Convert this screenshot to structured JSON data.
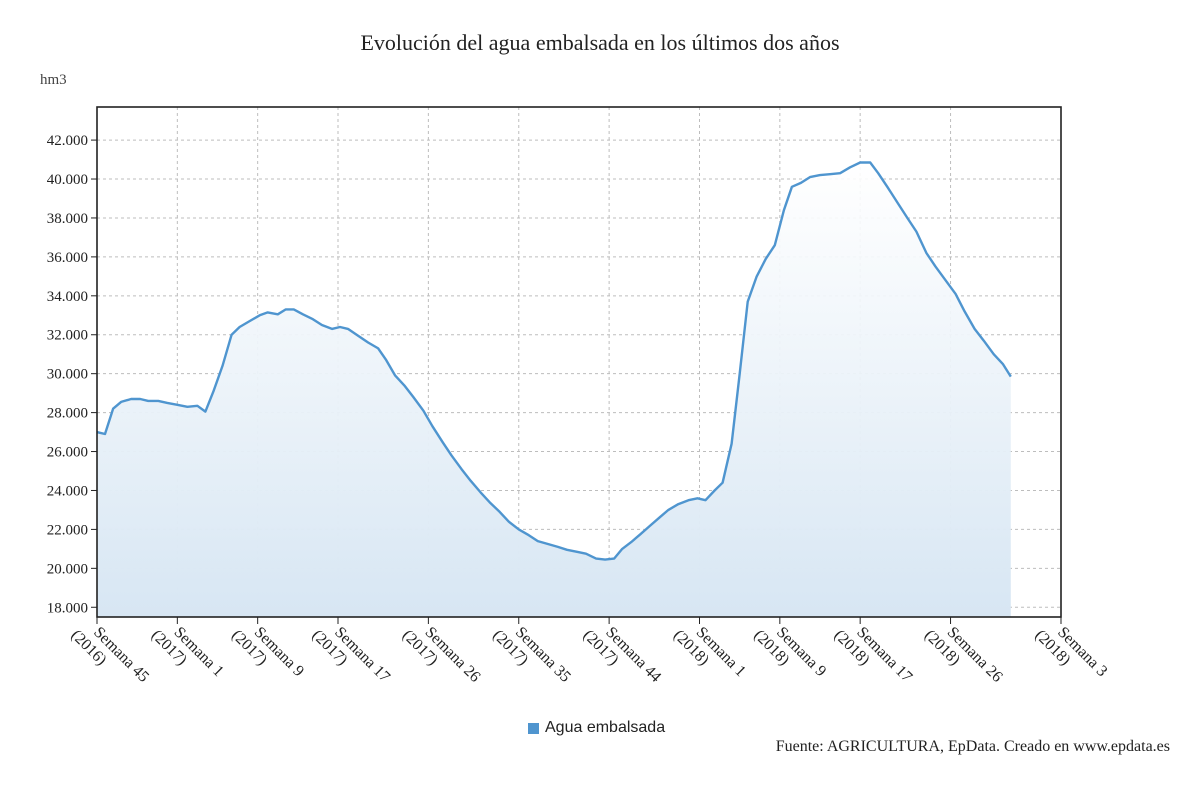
{
  "chart_data": {
    "type": "area",
    "title": "Evolución del agua embalsada en los últimos dos años",
    "unit_label": "hm3",
    "ylim": [
      17500,
      43700
    ],
    "y_ticks": [
      18000,
      20000,
      22000,
      24000,
      26000,
      28000,
      30000,
      32000,
      34000,
      36000,
      38000,
      40000,
      42000
    ],
    "y_tick_labels": [
      "18.000",
      "20.000",
      "22.000",
      "24.000",
      "26.000",
      "28.000",
      "30.000",
      "32.000",
      "34.000",
      "36.000",
      "38.000",
      "40.000",
      "42.000"
    ],
    "x_range": [
      0,
      96
    ],
    "x_ticks": [
      {
        "x": 0,
        "line1": "Semana 45",
        "line2": "(2016)"
      },
      {
        "x": 8,
        "line1": "Semana 1",
        "line2": "(2017)"
      },
      {
        "x": 16,
        "line1": "Semana 9",
        "line2": "(2017)"
      },
      {
        "x": 24,
        "line1": "Semana 17",
        "line2": "(2017)"
      },
      {
        "x": 33,
        "line1": "Semana 26",
        "line2": "(2017)"
      },
      {
        "x": 42,
        "line1": "Semana 35",
        "line2": "(2017)"
      },
      {
        "x": 51,
        "line1": "Semana 44",
        "line2": "(2017)"
      },
      {
        "x": 60,
        "line1": "Semana 1",
        "line2": "(2018)"
      },
      {
        "x": 68,
        "line1": "Semana 9",
        "line2": "(2018)"
      },
      {
        "x": 76,
        "line1": "Semana 17",
        "line2": "(2018)"
      },
      {
        "x": 85,
        "line1": "Semana 26",
        "line2": "(2018)"
      },
      {
        "x": 96,
        "line1": "Semana 3",
        "line2": "(2018)"
      }
    ],
    "grid": true,
    "legend_position": "bottom",
    "series": [
      {
        "name": "Agua embalsada",
        "color": "#4f95cf",
        "points": [
          [
            0,
            27000
          ],
          [
            0.8,
            26900
          ],
          [
            1.6,
            28200
          ],
          [
            2.4,
            28550
          ],
          [
            3.4,
            28700
          ],
          [
            4.3,
            28700
          ],
          [
            5.1,
            28600
          ],
          [
            6.1,
            28600
          ],
          [
            7.0,
            28500
          ],
          [
            8.0,
            28400
          ],
          [
            9.0,
            28300
          ],
          [
            10.0,
            28350
          ],
          [
            10.8,
            28050
          ],
          [
            11.6,
            29100
          ],
          [
            12.5,
            30400
          ],
          [
            13.4,
            32000
          ],
          [
            14.2,
            32400
          ],
          [
            15.2,
            32700
          ],
          [
            16.2,
            33000
          ],
          [
            17.0,
            33150
          ],
          [
            18.0,
            33050
          ],
          [
            18.8,
            33300
          ],
          [
            19.6,
            33300
          ],
          [
            20.5,
            33050
          ],
          [
            21.5,
            32800
          ],
          [
            22.4,
            32500
          ],
          [
            23.4,
            32300
          ],
          [
            24.2,
            32400
          ],
          [
            25.0,
            32300
          ],
          [
            26.0,
            31950
          ],
          [
            27.0,
            31600
          ],
          [
            28.0,
            31300
          ],
          [
            28.8,
            30700
          ],
          [
            29.7,
            29900
          ],
          [
            30.6,
            29400
          ],
          [
            31.5,
            28800
          ],
          [
            32.5,
            28100
          ],
          [
            33.4,
            27300
          ],
          [
            34.4,
            26500
          ],
          [
            35.3,
            25800
          ],
          [
            36.3,
            25100
          ],
          [
            37.2,
            24500
          ],
          [
            38.2,
            23900
          ],
          [
            39.1,
            23400
          ],
          [
            40.1,
            22900
          ],
          [
            41.0,
            22400
          ],
          [
            42.0,
            22000
          ],
          [
            43.0,
            21700
          ],
          [
            43.9,
            21400
          ],
          [
            44.9,
            21250
          ],
          [
            45.9,
            21100
          ],
          [
            46.8,
            20950
          ],
          [
            47.8,
            20850
          ],
          [
            48.7,
            20750
          ],
          [
            49.7,
            20500
          ],
          [
            50.6,
            20450
          ],
          [
            51.5,
            20500
          ],
          [
            52.3,
            21000
          ],
          [
            53.2,
            21350
          ],
          [
            54.1,
            21750
          ],
          [
            55.1,
            22200
          ],
          [
            56.0,
            22600
          ],
          [
            56.9,
            23000
          ],
          [
            57.9,
            23300
          ],
          [
            58.9,
            23500
          ],
          [
            59.8,
            23600
          ],
          [
            60.6,
            23500
          ],
          [
            61.5,
            24000
          ],
          [
            62.3,
            24400
          ],
          [
            63.2,
            26400
          ],
          [
            64.0,
            30000
          ],
          [
            64.8,
            33700
          ],
          [
            65.7,
            35000
          ],
          [
            66.6,
            35900
          ],
          [
            67.5,
            36600
          ],
          [
            68.4,
            38400
          ],
          [
            69.2,
            39600
          ],
          [
            70.1,
            39800
          ],
          [
            71.0,
            40100
          ],
          [
            72.0,
            40200
          ],
          [
            73.0,
            40250
          ],
          [
            74.0,
            40300
          ],
          [
            75.0,
            40600
          ],
          [
            76.0,
            40850
          ],
          [
            77.0,
            40850
          ],
          [
            77.8,
            40300
          ],
          [
            78.7,
            39600
          ],
          [
            79.7,
            38800
          ],
          [
            80.7,
            38000
          ],
          [
            81.6,
            37300
          ],
          [
            82.6,
            36200
          ],
          [
            83.5,
            35500
          ],
          [
            84.5,
            34800
          ],
          [
            85.5,
            34100
          ],
          [
            86.4,
            33200
          ],
          [
            87.4,
            32300
          ],
          [
            88.3,
            31700
          ],
          [
            89.3,
            31000
          ],
          [
            90.2,
            30500
          ],
          [
            91.0,
            29850
          ]
        ]
      }
    ]
  },
  "legend": {
    "label": "Agua embalsada",
    "color": "#4f95cf"
  },
  "source": "Fuente: AGRICULTURA, EpData. Creado en www.epdata.es"
}
